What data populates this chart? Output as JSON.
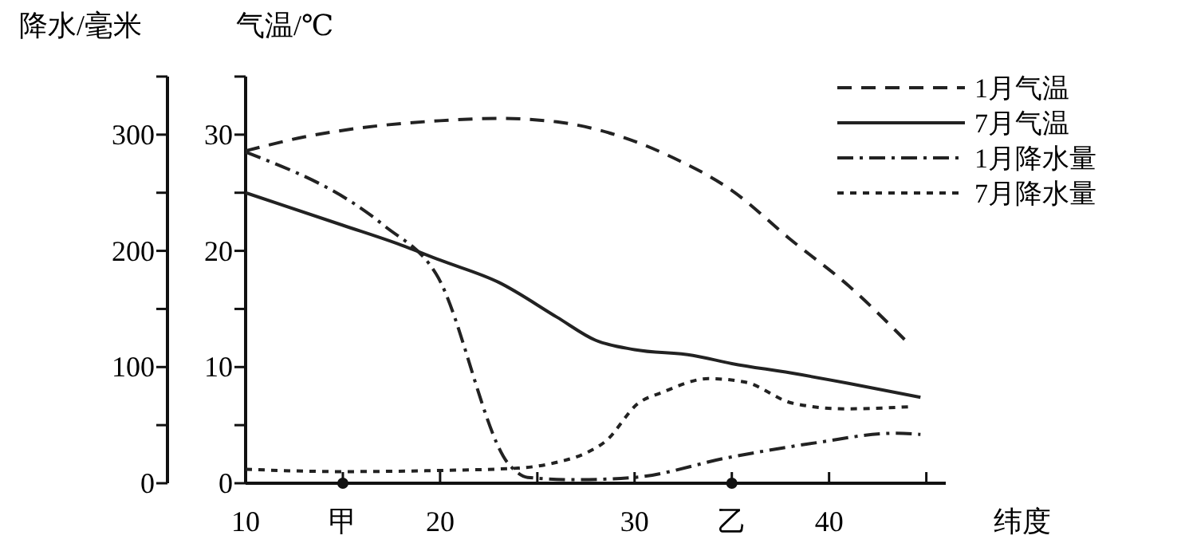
{
  "chart_data": {
    "type": "line",
    "ylabel": "气温/℃",
    "y2label": "降水/毫米",
    "xlabel": "纬度",
    "xlim": [
      10,
      46
    ],
    "xticks": [
      10,
      {
        "value": 15,
        "label": "甲"
      },
      20,
      {
        "value": 25,
        "label": null
      },
      30,
      {
        "value": 35,
        "label": "乙"
      },
      40,
      {
        "value": 45,
        "label": null
      }
    ],
    "ylim": [
      0,
      35
    ],
    "yticks": [
      0,
      {
        "value": 5,
        "label": null
      },
      10,
      {
        "value": 15,
        "label": null
      },
      20,
      {
        "value": 25,
        "label": null
      },
      30,
      {
        "value": 35,
        "label": null
      }
    ],
    "y2lim": [
      0,
      350
    ],
    "y2ticks": [
      0,
      {
        "value": 50,
        "label": null
      },
      100,
      {
        "value": 150,
        "label": null
      },
      200,
      {
        "value": 250,
        "label": null
      },
      300,
      {
        "value": 350,
        "label": null
      }
    ],
    "legend": "top right",
    "grid": false,
    "marker": "none",
    "series": [
      {
        "name": "1月气温",
        "color": "#222222",
        "line_style": "dashed",
        "x": [
          10,
          13,
          16,
          20,
          23,
          26,
          29,
          32,
          35,
          38,
          41,
          44.1
        ],
        "values": [
          28.6,
          29.8,
          30.6,
          31.2,
          31.4,
          31.1,
          30,
          28,
          25.2,
          21,
          17,
          12
        ]
      },
      {
        "name": "7月气温",
        "color": "#222222",
        "line_style": "solid",
        "x": [
          10,
          15,
          18,
          20,
          23,
          26,
          28,
          30,
          33,
          35,
          38,
          41,
          44.7
        ],
        "values": [
          25,
          22.2,
          20.5,
          19.2,
          17.3,
          14.3,
          12.3,
          11.5,
          11,
          10.3,
          9.5,
          8.6,
          7.4
        ]
      },
      {
        "name": "1月降水量",
        "color": "#222222",
        "line_style": "dashdot",
        "axis": "y2",
        "x": [
          10,
          17.1,
          19.8,
          23.6,
          24.5,
          27,
          30,
          34.8,
          39.4,
          43.3,
          44.7
        ],
        "values": [
          285,
          222,
          180,
          15,
          5,
          3,
          5,
          22,
          35,
          43,
          42
        ]
      },
      {
        "name": "7月降水量",
        "color": "#222222",
        "line_style": "dotted",
        "axis": "y2",
        "x": [
          10,
          15,
          20,
          24,
          26,
          27.5,
          28.5,
          30.2,
          31.4,
          33.8,
          35.7,
          38.1,
          40.8,
          44.3
        ],
        "values": [
          12,
          10,
          11,
          13,
          18,
          26,
          36,
          69,
          78,
          90,
          87,
          69,
          64,
          66
        ]
      }
    ]
  }
}
